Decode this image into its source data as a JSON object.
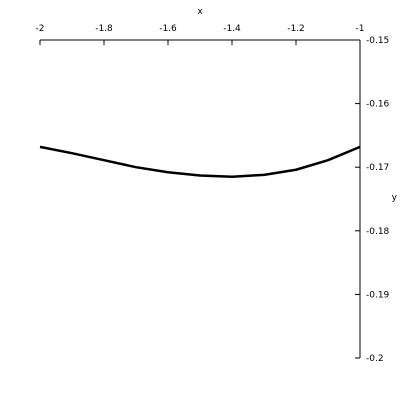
{
  "chart_data": {
    "type": "line",
    "x_label": "x",
    "y_label": "y",
    "x": [
      -2,
      -1.9,
      -1.8,
      -1.7,
      -1.6,
      -1.5,
      -1.4,
      -1.3,
      -1.2,
      -1.1,
      -1
    ],
    "series": [
      {
        "color": "#000000",
        "values": [
          -0.1668,
          -0.1678,
          -0.1689,
          -0.17,
          -0.1708,
          -0.1713,
          -0.1715,
          -0.1712,
          -0.1704,
          -0.1689,
          -0.1668
        ]
      }
    ],
    "xlim": [
      -2,
      -1
    ],
    "ylim": [
      -0.2,
      -0.15
    ],
    "xticks": [
      -2,
      -1.8,
      -1.6,
      -1.4,
      -1.2,
      -1
    ],
    "yticks": [
      -0.15,
      -0.16,
      -0.17,
      -0.18,
      -0.19,
      -0.2
    ]
  }
}
